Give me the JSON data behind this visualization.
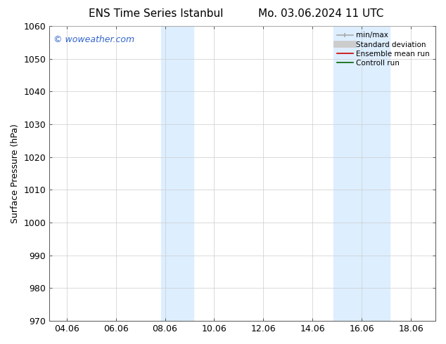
{
  "title_left": "ENS Time Series Istanbul",
  "title_right": "Mo. 03.06.2024 11 UTC",
  "ylabel": "Surface Pressure (hPa)",
  "ylim": [
    970,
    1060
  ],
  "yticks": [
    970,
    980,
    990,
    1000,
    1010,
    1020,
    1030,
    1040,
    1050,
    1060
  ],
  "xtick_labels": [
    "04.06",
    "06.06",
    "08.06",
    "10.06",
    "12.06",
    "14.06",
    "16.06",
    "18.06"
  ],
  "xtick_positions": [
    0,
    2,
    4,
    6,
    8,
    10,
    12,
    14
  ],
  "xlim": [
    -0.7,
    15.0
  ],
  "shaded_regions": [
    {
      "xmin": 3.85,
      "xmax": 5.15,
      "color": "#ddeeff"
    },
    {
      "xmin": 10.85,
      "xmax": 13.15,
      "color": "#ddeeff"
    }
  ],
  "watermark_text": "© woweather.com",
  "watermark_color": "#3366cc",
  "bg_color": "#ffffff",
  "grid_color": "#cccccc",
  "font_size": 9,
  "title_font_size": 11
}
